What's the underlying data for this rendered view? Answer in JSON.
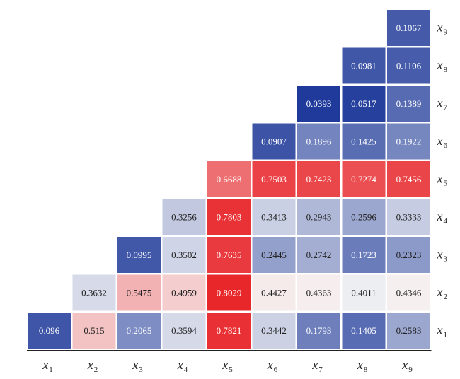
{
  "chart_data": {
    "type": "heatmap",
    "title": "",
    "variables": [
      "x1",
      "x2",
      "x3",
      "x4",
      "x5",
      "x6",
      "x7",
      "x8",
      "x9"
    ],
    "axis_labels": [
      {
        "var": "x",
        "sub": "1"
      },
      {
        "var": "x",
        "sub": "2"
      },
      {
        "var": "x",
        "sub": "3"
      },
      {
        "var": "x",
        "sub": "4"
      },
      {
        "var": "x",
        "sub": "5"
      },
      {
        "var": "x",
        "sub": "6"
      },
      {
        "var": "x",
        "sub": "7"
      },
      {
        "var": "x",
        "sub": "8"
      },
      {
        "var": "x",
        "sub": "9"
      }
    ],
    "matrix_upper_triangle": [
      [
        "0.096",
        "0.515",
        "0.2065",
        "0.3594",
        "0.7821",
        "0.3442",
        "0.1793",
        "0.1405",
        "0.2583"
      ],
      [
        null,
        "0.3632",
        "0.5475",
        "0.4959",
        "0.8029",
        "0.4427",
        "0.4363",
        "0.4011",
        "0.4346"
      ],
      [
        null,
        null,
        "0.0995",
        "0.3502",
        "0.7635",
        "0.2445",
        "0.2742",
        "0.1723",
        "0.2323"
      ],
      [
        null,
        null,
        null,
        "0.3256",
        "0.7803",
        "0.3413",
        "0.2943",
        "0.2596",
        "0.3333"
      ],
      [
        null,
        null,
        null,
        null,
        "0.6688",
        "0.7503",
        "0.7423",
        "0.7274",
        "0.7456"
      ],
      [
        null,
        null,
        null,
        null,
        null,
        "0.0907",
        "0.1896",
        "0.1425",
        "0.1922"
      ],
      [
        null,
        null,
        null,
        null,
        null,
        null,
        "0.0393",
        "0.0517",
        "0.1389"
      ],
      [
        null,
        null,
        null,
        null,
        null,
        null,
        null,
        "0.0981",
        "0.1106"
      ],
      [
        null,
        null,
        null,
        null,
        null,
        null,
        null,
        null,
        "0.1067"
      ]
    ],
    "color_scale": {
      "low": "#1f3a9a",
      "mid": "#f7f7f7",
      "high": "#e8272b",
      "domain": [
        0.04,
        0.42,
        0.8
      ]
    },
    "x_axis_position": "bottom",
    "y_axis_position": "right",
    "legend": "none",
    "grid": false
  }
}
